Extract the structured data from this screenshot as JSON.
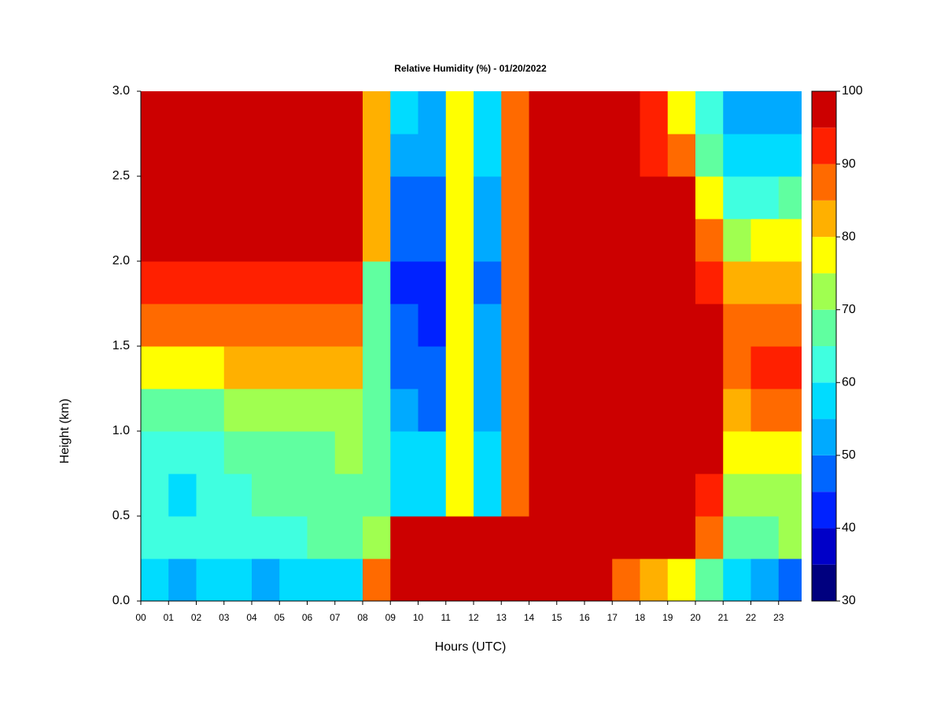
{
  "chart_data": {
    "type": "heatmap",
    "title": "Relative Humidity (%) - 01/20/2022",
    "x_label": "Hours (UTC)",
    "y_label": "Height (km)",
    "x": [
      0,
      1,
      2,
      3,
      4,
      5,
      6,
      7,
      8,
      9,
      10,
      11,
      12,
      13,
      14,
      15,
      16,
      17,
      18,
      19,
      20,
      21,
      22,
      23
    ],
    "y": [
      0.125,
      0.375,
      0.625,
      0.875,
      1.125,
      1.375,
      1.625,
      1.875,
      2.125,
      2.375,
      2.625,
      2.875
    ],
    "z": [
      [
        55,
        54,
        55,
        55,
        54,
        55,
        56,
        57,
        85,
        98,
        98,
        98,
        98,
        98,
        98,
        98,
        97,
        85,
        80,
        75,
        65,
        58,
        50,
        48
      ],
      [
        60,
        60,
        61,
        63,
        63,
        64,
        65,
        66,
        70,
        95,
        95,
        95,
        95,
        98,
        98,
        98,
        98,
        98,
        96,
        95,
        88,
        68,
        65,
        70
      ],
      [
        60,
        59,
        60,
        63,
        65,
        66,
        67,
        68,
        65,
        58,
        56,
        75,
        55,
        85,
        98,
        98,
        98,
        98,
        96,
        96,
        92,
        72,
        70,
        72
      ],
      [
        62,
        61,
        62,
        65,
        67,
        68,
        69,
        70,
        65,
        56,
        55,
        75,
        55,
        85,
        98,
        98,
        98,
        98,
        96,
        96,
        95,
        76,
        75,
        75
      ],
      [
        67,
        66,
        67,
        70,
        72,
        72,
        73,
        72,
        65,
        50,
        48,
        75,
        53,
        85,
        98,
        98,
        98,
        98,
        96,
        96,
        95,
        82,
        85,
        88
      ],
      [
        78,
        77,
        78,
        80,
        82,
        80,
        82,
        80,
        65,
        48,
        45,
        75,
        52,
        85,
        98,
        98,
        98,
        98,
        96,
        96,
        95,
        88,
        92,
        93
      ],
      [
        88,
        87,
        88,
        87,
        86,
        86,
        87,
        86,
        65,
        45,
        42,
        75,
        50,
        85,
        98,
        98,
        98,
        98,
        96,
        96,
        95,
        85,
        86,
        85
      ],
      [
        92,
        91,
        92,
        91,
        90,
        91,
        92,
        90,
        65,
        44,
        40,
        75,
        48,
        85,
        98,
        98,
        98,
        98,
        96,
        96,
        93,
        80,
        82,
        80
      ],
      [
        98,
        98,
        98,
        98,
        98,
        98,
        98,
        98,
        80,
        48,
        46,
        75,
        52,
        85,
        98,
        98,
        98,
        98,
        96,
        96,
        85,
        72,
        75,
        75
      ],
      [
        98,
        98,
        98,
        98,
        98,
        98,
        98,
        98,
        80,
        48,
        47,
        75,
        53,
        85,
        98,
        98,
        98,
        98,
        96,
        96,
        75,
        62,
        62,
        65
      ],
      [
        98,
        98,
        98,
        98,
        98,
        98,
        98,
        98,
        80,
        52,
        50,
        75,
        55,
        85,
        98,
        98,
        98,
        98,
        94,
        88,
        68,
        55,
        55,
        58
      ],
      [
        98,
        98,
        98,
        98,
        98,
        98,
        98,
        98,
        80,
        55,
        52,
        75,
        57,
        85,
        98,
        98,
        98,
        98,
        92,
        78,
        62,
        50,
        50,
        52
      ]
    ],
    "xlim": [
      0,
      23.83
    ],
    "ylim": [
      0,
      3
    ],
    "xticks": [
      {
        "value": 0,
        "label": "00"
      },
      {
        "value": 1,
        "label": "01"
      },
      {
        "value": 2,
        "label": "02"
      },
      {
        "value": 3,
        "label": "03"
      },
      {
        "value": 4,
        "label": "04"
      },
      {
        "value": 5,
        "label": "05"
      },
      {
        "value": 6,
        "label": "06"
      },
      {
        "value": 7,
        "label": "07"
      },
      {
        "value": 8,
        "label": "08"
      },
      {
        "value": 9,
        "label": "09"
      },
      {
        "value": 10,
        "label": "10"
      },
      {
        "value": 11,
        "label": "11"
      },
      {
        "value": 12,
        "label": "12"
      },
      {
        "value": 13,
        "label": "13"
      },
      {
        "value": 14,
        "label": "14"
      },
      {
        "value": 15,
        "label": "15"
      },
      {
        "value": 16,
        "label": "16"
      },
      {
        "value": 17,
        "label": "17"
      },
      {
        "value": 18,
        "label": "18"
      },
      {
        "value": 19,
        "label": "19"
      },
      {
        "value": 20,
        "label": "20"
      },
      {
        "value": 21,
        "label": "21"
      },
      {
        "value": 22,
        "label": "22"
      },
      {
        "value": 23,
        "label": "23"
      }
    ],
    "yticks": [
      {
        "value": 0,
        "label": "0.0"
      },
      0.5,
      {
        "value": 1,
        "label": "1.0"
      },
      1.5,
      {
        "value": 2,
        "label": "2.0"
      },
      2.5,
      {
        "value": 3,
        "label": "3.0"
      }
    ],
    "levels": [
      30,
      35,
      40,
      45,
      50,
      55,
      60,
      65,
      70,
      75,
      80,
      85,
      90,
      95,
      100
    ],
    "colors": [
      "#00007f",
      "#0000c8",
      "#0022ff",
      "#0066ff",
      "#00aaff",
      "#00dcff",
      "#40ffe0",
      "#60ffa0",
      "#a0ff50",
      "#ffff00",
      "#ffb000",
      "#ff6a00",
      "#ff2000",
      "#cc0000",
      "#800000"
    ],
    "colorbar_ticks": [
      30,
      40,
      50,
      60,
      70,
      80,
      90,
      100
    ]
  }
}
